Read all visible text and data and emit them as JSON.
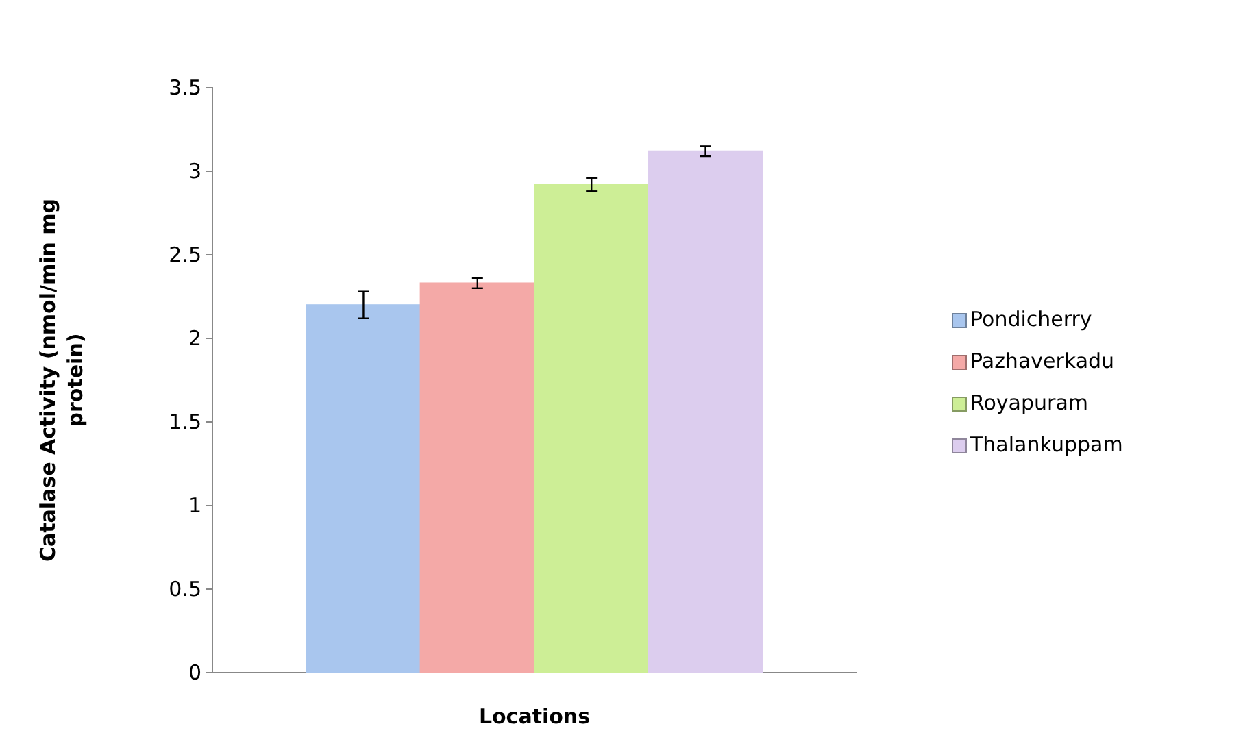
{
  "chart_data": {
    "type": "bar",
    "xlabel": "Locations",
    "ylabel": "Catalase Activity (nmol/min mg protein)",
    "categories": [
      null
    ],
    "series": [
      {
        "name": "Pondicherry",
        "color": "#a9c6ee",
        "values": [
          2.2
        ],
        "errors": [
          0.08
        ]
      },
      {
        "name": "Pazhaverkadu",
        "color": "#f4a9a7",
        "values": [
          2.33
        ],
        "errors": [
          0.03
        ]
      },
      {
        "name": "Royapuram",
        "color": "#cdee96",
        "values": [
          2.92
        ],
        "errors": [
          0.04
        ]
      },
      {
        "name": "Thalankuppam",
        "color": "#dccdee",
        "values": [
          3.12
        ],
        "errors": [
          0.03
        ]
      }
    ],
    "ylim": [
      0,
      3.5
    ],
    "yticks": [
      0,
      0.5,
      1,
      1.5,
      2,
      2.5,
      3,
      3.5
    ],
    "legend": "right",
    "grid": false
  }
}
